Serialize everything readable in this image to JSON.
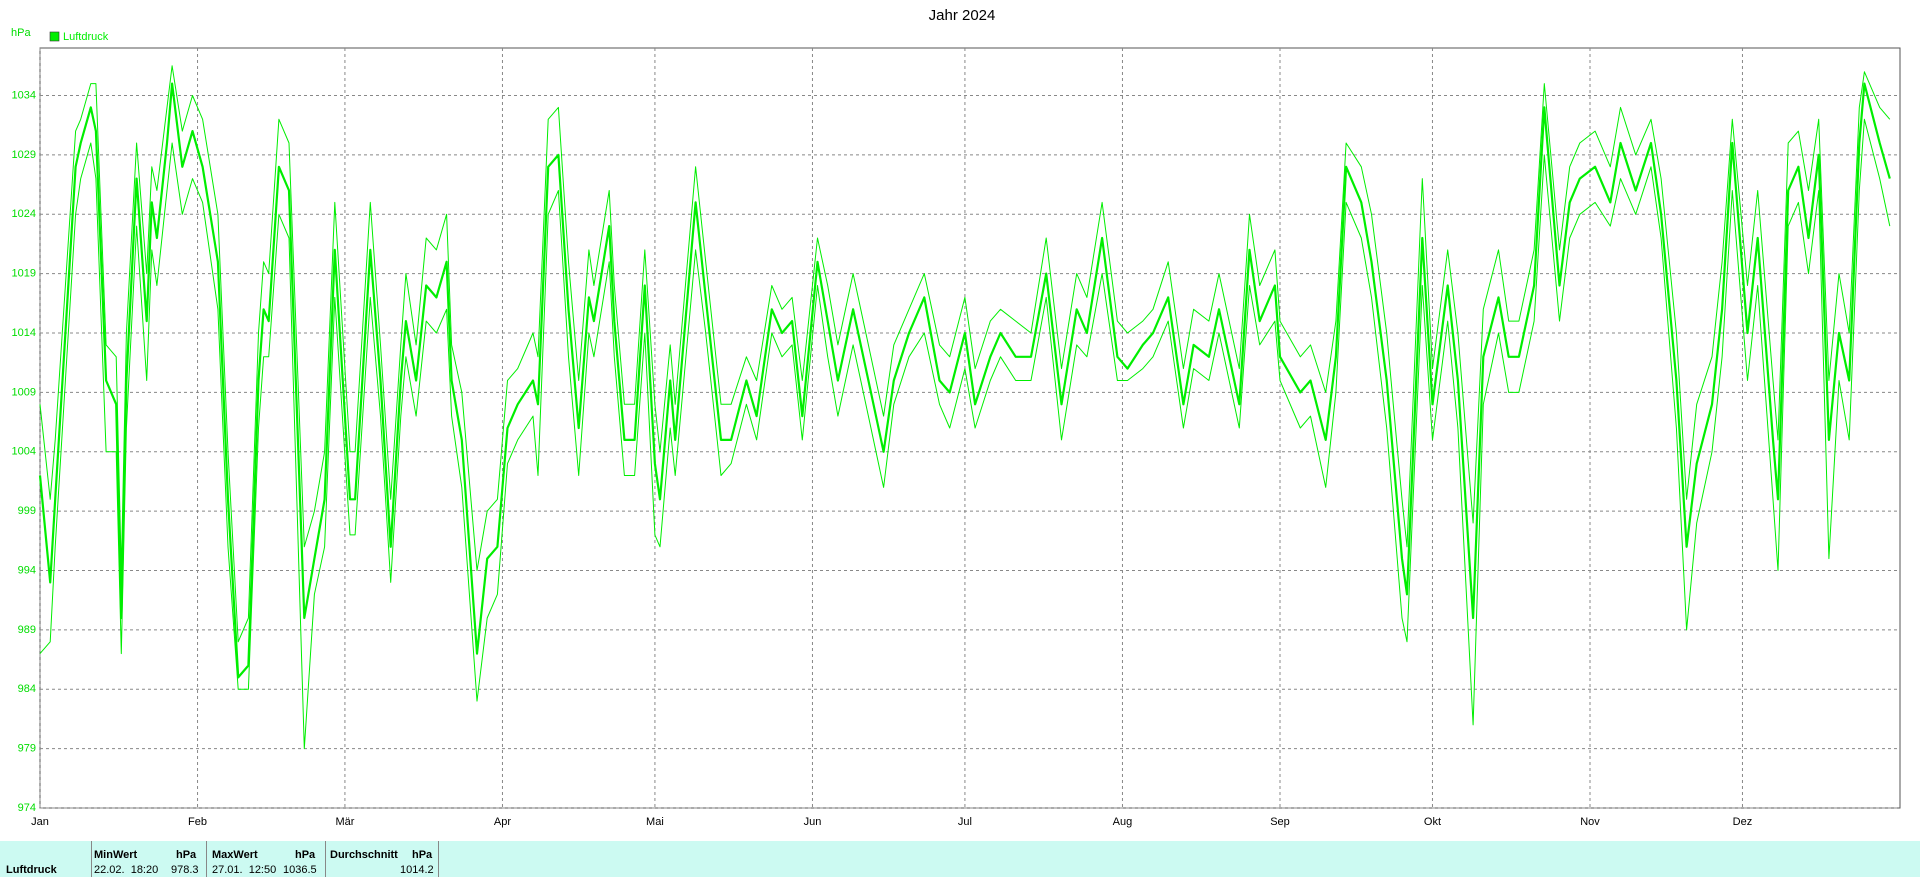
{
  "chart_data": {
    "type": "line",
    "title": "Jahr 2024",
    "y_label": "hPa",
    "grid": true,
    "legend": "top-left",
    "xlim": [
      0,
      366
    ],
    "ylim": [
      974,
      1038
    ],
    "xticks": [
      {
        "value": 0,
        "label": "Jan"
      },
      {
        "value": 31,
        "label": "Feb"
      },
      {
        "value": 60,
        "label": "Mär"
      },
      {
        "value": 91,
        "label": "Apr"
      },
      {
        "value": 121,
        "label": "Mai"
      },
      {
        "value": 152,
        "label": "Jun"
      },
      {
        "value": 182,
        "label": "Jul"
      },
      {
        "value": 213,
        "label": "Aug"
      },
      {
        "value": 244,
        "label": "Sep"
      },
      {
        "value": 274,
        "label": "Okt"
      },
      {
        "value": 305,
        "label": "Nov"
      },
      {
        "value": 335,
        "label": "Dez"
      }
    ],
    "yticks": [
      974,
      979,
      984,
      989,
      994,
      999,
      1004,
      1009,
      1014,
      1019,
      1024,
      1029,
      1034
    ],
    "x": [
      0,
      2,
      3,
      7,
      8,
      10,
      11,
      13,
      15,
      16,
      17,
      19,
      21,
      22,
      23,
      25,
      26,
      28,
      30,
      32,
      35,
      37,
      39,
      41,
      43,
      44,
      45,
      47,
      49,
      52,
      54,
      56,
      58,
      61,
      62,
      65,
      67,
      69,
      71,
      72,
      74,
      76,
      78,
      80,
      81,
      83,
      86,
      88,
      90,
      92,
      94,
      97,
      98,
      100,
      102,
      104,
      106,
      108,
      109,
      112,
      113,
      115,
      117,
      119,
      121,
      122,
      124,
      125,
      129,
      131,
      134,
      136,
      139,
      141,
      144,
      146,
      148,
      150,
      153,
      155,
      157,
      160,
      163,
      166,
      168,
      171,
      174,
      177,
      179,
      182,
      184,
      187,
      189,
      192,
      195,
      198,
      201,
      204,
      206,
      209,
      212,
      214,
      217,
      219,
      222,
      225,
      227,
      230,
      232,
      236,
      238,
      240,
      243,
      244,
      248,
      250,
      253,
      255,
      257,
      260,
      262,
      265,
      268,
      269,
      272,
      274,
      277,
      279,
      282,
      284,
      287,
      289,
      291,
      294,
      296,
      299,
      301,
      303,
      306,
      309,
      311,
      314,
      317,
      319,
      322,
      324,
      326,
      329,
      331,
      333,
      336,
      338,
      341,
      342,
      344,
      346,
      348,
      350,
      352,
      354,
      356,
      358,
      359,
      362,
      364
    ],
    "series": [
      {
        "name": "Luftdruck",
        "color": "#00ee00",
        "values": [
          1002,
          993,
          1000,
          1028,
          1030,
          1033,
          1031,
          1010,
          1008,
          990,
          1010,
          1027,
          1015,
          1025,
          1022,
          1030,
          1035,
          1028,
          1031,
          1028,
          1020,
          1000,
          985,
          986,
          1010,
          1016,
          1015,
          1028,
          1026,
          990,
          995,
          1000,
          1021,
          1000,
          1000,
          1021,
          1010,
          996,
          1010,
          1015,
          1010,
          1018,
          1017,
          1020,
          1010,
          1005,
          987,
          995,
          996,
          1006,
          1008,
          1010,
          1008,
          1028,
          1029,
          1016,
          1006,
          1017,
          1015,
          1023,
          1015,
          1005,
          1005,
          1018,
          1003,
          1000,
          1010,
          1005,
          1025,
          1017,
          1005,
          1005,
          1010,
          1007,
          1016,
          1014,
          1015,
          1007,
          1020,
          1015,
          1010,
          1016,
          1010,
          1004,
          1010,
          1014,
          1017,
          1010,
          1009,
          1014,
          1008,
          1012,
          1014,
          1012,
          1012,
          1019,
          1008,
          1016,
          1014,
          1022,
          1012,
          1011,
          1013,
          1014,
          1017,
          1008,
          1013,
          1012,
          1016,
          1008,
          1021,
          1015,
          1018,
          1012,
          1009,
          1010,
          1005,
          1012,
          1028,
          1025,
          1020,
          1010,
          995,
          992,
          1022,
          1008,
          1018,
          1010,
          990,
          1012,
          1017,
          1012,
          1012,
          1018,
          1033,
          1018,
          1025,
          1027,
          1028,
          1025,
          1030,
          1026,
          1030,
          1024,
          1010,
          996,
          1003,
          1008,
          1016,
          1030,
          1014,
          1022,
          1005,
          1000,
          1026,
          1028,
          1022,
          1029,
          1005,
          1014,
          1010,
          1030,
          1035,
          1030,
          1027
        ],
        "min_values": [
          987,
          988,
          996,
          1024,
          1027,
          1030,
          1027,
          1004,
          1004,
          987,
          1006,
          1023,
          1010,
          1021,
          1018,
          1026,
          1030,
          1024,
          1027,
          1025,
          1016,
          996,
          984,
          984,
          1006,
          1012,
          1012,
          1024,
          1022,
          979,
          992,
          996,
          1017,
          997,
          997,
          1017,
          1007,
          993,
          1007,
          1012,
          1007,
          1015,
          1014,
          1016,
          1007,
          1001,
          983,
          990,
          992,
          1003,
          1005,
          1007,
          1002,
          1024,
          1026,
          1012,
          1002,
          1014,
          1012,
          1020,
          1012,
          1002,
          1002,
          1014,
          997,
          996,
          1006,
          1002,
          1021,
          1014,
          1002,
          1003,
          1008,
          1005,
          1014,
          1012,
          1013,
          1005,
          1018,
          1012,
          1007,
          1013,
          1007,
          1001,
          1008,
          1012,
          1014,
          1008,
          1006,
          1011,
          1006,
          1010,
          1012,
          1010,
          1010,
          1017,
          1005,
          1013,
          1012,
          1019,
          1010,
          1010,
          1011,
          1012,
          1015,
          1006,
          1011,
          1010,
          1014,
          1006,
          1018,
          1013,
          1015,
          1010,
          1006,
          1007,
          1001,
          1009,
          1025,
          1022,
          1017,
          1006,
          990,
          988,
          1018,
          1005,
          1015,
          1006,
          981,
          1008,
          1014,
          1009,
          1009,
          1015,
          1029,
          1015,
          1022,
          1024,
          1025,
          1023,
          1027,
          1024,
          1028,
          1022,
          1006,
          989,
          998,
          1004,
          1012,
          1026,
          1010,
          1018,
          1000,
          994,
          1023,
          1025,
          1019,
          1026,
          995,
          1010,
          1005,
          1026,
          1032,
          1027,
          1023
        ],
        "max_values": [
          1008,
          1000,
          1005,
          1031,
          1032,
          1035,
          1035,
          1013,
          1012,
          994,
          1014,
          1030,
          1019,
          1028,
          1026,
          1033,
          1036.5,
          1031,
          1034,
          1032,
          1024,
          1004,
          988,
          990,
          1014,
          1020,
          1019,
          1032,
          1030,
          996,
          999,
          1004,
          1025,
          1004,
          1004,
          1025,
          1013,
          1000,
          1013,
          1019,
          1013,
          1022,
          1021,
          1024,
          1013,
          1009,
          994,
          999,
          1000,
          1010,
          1011,
          1014,
          1012,
          1032,
          1033,
          1020,
          1010,
          1021,
          1018,
          1026,
          1018,
          1008,
          1008,
          1021,
          1008,
          1004,
          1013,
          1008,
          1028,
          1020,
          1008,
          1008,
          1012,
          1010,
          1018,
          1016,
          1017,
          1010,
          1022,
          1018,
          1013,
          1019,
          1013,
          1007,
          1013,
          1016,
          1019,
          1013,
          1012,
          1017,
          1011,
          1015,
          1016,
          1015,
          1014,
          1022,
          1011,
          1019,
          1017,
          1025,
          1015,
          1014,
          1015,
          1016,
          1020,
          1011,
          1016,
          1015,
          1019,
          1011,
          1024,
          1018,
          1021,
          1015,
          1012,
          1013,
          1009,
          1015,
          1030,
          1028,
          1024,
          1014,
          1000,
          996,
          1027,
          1011,
          1021,
          1014,
          998,
          1016,
          1021,
          1015,
          1015,
          1021,
          1035,
          1021,
          1028,
          1030,
          1031,
          1028,
          1033,
          1029,
          1032,
          1027,
          1014,
          1000,
          1008,
          1012,
          1020,
          1032,
          1018,
          1026,
          1010,
          1005,
          1030,
          1031,
          1026,
          1032,
          1010,
          1019,
          1014,
          1033,
          1036,
          1033,
          1032
        ]
      }
    ]
  },
  "summary": {
    "label": "Luftdruck",
    "columns": [
      {
        "header": "MinWert",
        "unit": "hPa",
        "time": "22.02.  18:20",
        "value": "978.3"
      },
      {
        "header": "MaxWert",
        "unit": "hPa",
        "time": "27.01.  12:50",
        "value": "1036.5"
      },
      {
        "header": "Durchschnitt",
        "unit": "hPa",
        "value": "1014.2"
      }
    ]
  }
}
